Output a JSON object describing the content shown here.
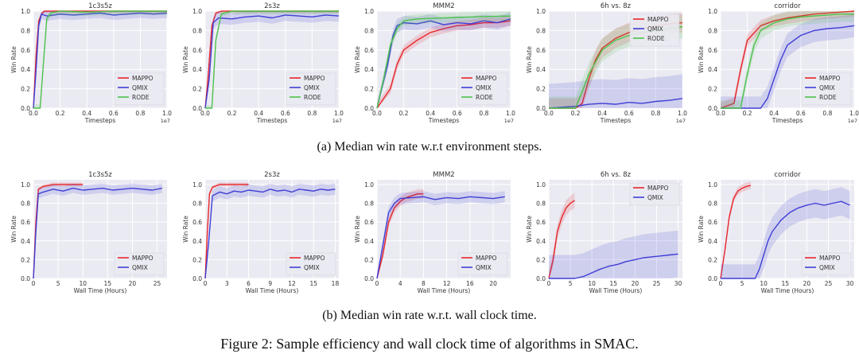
{
  "figure": {
    "row_a_caption": "(a)  Median win rate w.r.t environment steps.",
    "row_b_caption": "(b)  Median win rate w.r.t. wall clock time.",
    "main_caption": "Figure 2: Sample efficiency and wall clock time of algorithms in SMAC."
  },
  "colors": {
    "MAPPO": "#e8262b",
    "QMIX": "#3f3fd6",
    "RODE": "#4cc24c",
    "panel_bg": "#eaeaf2"
  },
  "chart_data": [
    {
      "type": "line",
      "title": "1c3s5z",
      "xlabel": "Timesteps",
      "ylabel": "Win Rate",
      "x_multiplier": "1e7",
      "xlim": [
        0,
        1.0
      ],
      "ylim": [
        0,
        1.0
      ],
      "xticks": [
        "0.0",
        "0.2",
        "0.4",
        "0.6",
        "0.8",
        "1.0"
      ],
      "yticks": [
        "0.0",
        "0.2",
        "0.4",
        "0.6",
        "0.8",
        "1.0"
      ],
      "legend": "bottom-right",
      "series": [
        {
          "name": "MAPPO",
          "x": [
            0,
            0.02,
            0.04,
            0.06,
            0.08,
            0.1,
            0.2,
            0.4,
            0.6,
            0.8,
            1.0
          ],
          "y": [
            0,
            0.55,
            0.9,
            0.97,
            1.0,
            1.0,
            1.0,
            1.0,
            1.0,
            1.0,
            1.0
          ],
          "band": 0.02
        },
        {
          "name": "QMIX",
          "x": [
            0,
            0.02,
            0.04,
            0.06,
            0.1,
            0.2,
            0.3,
            0.4,
            0.5,
            0.6,
            0.7,
            0.8,
            0.9,
            1.0
          ],
          "y": [
            0,
            0.4,
            0.85,
            0.97,
            0.95,
            0.97,
            0.96,
            0.97,
            0.98,
            0.96,
            0.97,
            0.98,
            0.97,
            0.98
          ],
          "band": 0.05
        },
        {
          "name": "RODE",
          "x": [
            0,
            0.05,
            0.08,
            0.1,
            0.13,
            0.2,
            0.4,
            0.6,
            0.8,
            1.0
          ],
          "y": [
            0,
            0.0,
            0.55,
            0.92,
            0.98,
            1.0,
            0.99,
            1.0,
            1.0,
            1.0
          ],
          "band": 0.04
        }
      ]
    },
    {
      "type": "line",
      "title": "2s3z",
      "xlabel": "Timesteps",
      "ylabel": "Win Rate",
      "x_multiplier": "1e7",
      "xlim": [
        0,
        1.0
      ],
      "ylim": [
        0,
        1.0
      ],
      "xticks": [
        "0.0",
        "0.2",
        "0.4",
        "0.6",
        "0.8",
        "1.0"
      ],
      "yticks": [
        "0.0",
        "0.2",
        "0.4",
        "0.6",
        "0.8",
        "1.0"
      ],
      "legend": "bottom-right",
      "series": [
        {
          "name": "MAPPO",
          "x": [
            0,
            0.02,
            0.05,
            0.08,
            0.12,
            0.2,
            0.4,
            0.6,
            0.8,
            1.0
          ],
          "y": [
            0,
            0.3,
            0.85,
            0.98,
            1.0,
            1.0,
            1.0,
            1.0,
            1.0,
            1.0
          ],
          "band": 0.02
        },
        {
          "name": "QMIX",
          "x": [
            0,
            0.03,
            0.06,
            0.1,
            0.2,
            0.3,
            0.4,
            0.5,
            0.6,
            0.7,
            0.8,
            0.9,
            1.0
          ],
          "y": [
            0,
            0.3,
            0.88,
            0.93,
            0.92,
            0.94,
            0.95,
            0.93,
            0.96,
            0.95,
            0.94,
            0.96,
            0.95
          ],
          "band": 0.06
        },
        {
          "name": "RODE",
          "x": [
            0,
            0.05,
            0.08,
            0.12,
            0.2,
            0.4,
            0.6,
            0.8,
            1.0
          ],
          "y": [
            0,
            0.0,
            0.7,
            0.97,
            1.0,
            1.0,
            1.0,
            1.0,
            1.0
          ],
          "band": 0.03
        }
      ]
    },
    {
      "type": "line",
      "title": "MMM2",
      "xlabel": "Timesteps",
      "ylabel": "Win Rate",
      "x_multiplier": "1e7",
      "xlim": [
        0,
        1.0
      ],
      "ylim": [
        0,
        1.0
      ],
      "xticks": [
        "0.0",
        "0.2",
        "0.4",
        "0.6",
        "0.8",
        "1.0"
      ],
      "yticks": [
        "0.0",
        "0.2",
        "0.4",
        "0.6",
        "0.8",
        "1.0"
      ],
      "legend": "bottom-right",
      "series": [
        {
          "name": "MAPPO",
          "x": [
            0,
            0.1,
            0.15,
            0.2,
            0.3,
            0.4,
            0.5,
            0.6,
            0.7,
            0.8,
            0.9,
            1.0
          ],
          "y": [
            0,
            0.2,
            0.45,
            0.6,
            0.7,
            0.78,
            0.82,
            0.85,
            0.86,
            0.88,
            0.88,
            0.9
          ],
          "band": 0.05
        },
        {
          "name": "QMIX",
          "x": [
            0,
            0.08,
            0.12,
            0.15,
            0.2,
            0.3,
            0.4,
            0.5,
            0.6,
            0.7,
            0.8,
            0.9,
            1.0
          ],
          "y": [
            0,
            0.45,
            0.75,
            0.85,
            0.88,
            0.87,
            0.9,
            0.86,
            0.88,
            0.87,
            0.9,
            0.88,
            0.92
          ],
          "band": 0.07
        },
        {
          "name": "RODE",
          "x": [
            0,
            0.05,
            0.1,
            0.15,
            0.2,
            0.3,
            0.5,
            0.7,
            1.0
          ],
          "y": [
            0,
            0.3,
            0.65,
            0.82,
            0.9,
            0.92,
            0.93,
            0.94,
            0.95
          ],
          "band": 0.05
        }
      ]
    },
    {
      "type": "line",
      "title": "6h vs. 8z",
      "xlabel": "Timesteps",
      "ylabel": "Win Rate",
      "x_multiplier": "1e7",
      "xlim": [
        0,
        1.0
      ],
      "ylim": [
        0,
        1.0
      ],
      "xticks": [
        "0.0",
        "0.2",
        "0.4",
        "0.6",
        "0.8",
        "1.0"
      ],
      "yticks": [
        "0.0",
        "0.2",
        "0.4",
        "0.6",
        "0.8",
        "1.0"
      ],
      "legend": "top-right",
      "series": [
        {
          "name": "MAPPO",
          "x": [
            0,
            0.2,
            0.25,
            0.3,
            0.35,
            0.4,
            0.5,
            0.6,
            0.7,
            0.8,
            0.9,
            1.0
          ],
          "y": [
            0,
            0.0,
            0.05,
            0.3,
            0.5,
            0.62,
            0.72,
            0.78,
            0.82,
            0.85,
            0.87,
            0.88
          ],
          "band": 0.1
        },
        {
          "name": "QMIX",
          "x": [
            0,
            0.2,
            0.3,
            0.4,
            0.5,
            0.6,
            0.7,
            0.8,
            0.9,
            1.0
          ],
          "y": [
            0,
            0.02,
            0.04,
            0.05,
            0.04,
            0.06,
            0.05,
            0.07,
            0.08,
            0.1
          ],
          "band": 0.25
        },
        {
          "name": "RODE",
          "x": [
            0,
            0.2,
            0.3,
            0.4,
            0.5,
            0.6,
            0.7,
            0.8,
            0.9,
            1.0
          ],
          "y": [
            0,
            0.0,
            0.35,
            0.6,
            0.7,
            0.75,
            0.78,
            0.8,
            0.82,
            0.84
          ],
          "band": 0.12
        }
      ]
    },
    {
      "type": "line",
      "title": "corridor",
      "xlabel": "Timesteps",
      "ylabel": "Win Rate",
      "x_multiplier": "1e7",
      "xlim": [
        0,
        1.0
      ],
      "ylim": [
        0,
        1.0
      ],
      "xticks": [
        "0.0",
        "0.2",
        "0.4",
        "0.6",
        "0.8",
        "1.0"
      ],
      "yticks": [
        "0.0",
        "0.2",
        "0.4",
        "0.6",
        "0.8",
        "1.0"
      ],
      "legend": "bottom-right",
      "series": [
        {
          "name": "MAPPO",
          "x": [
            0,
            0.1,
            0.15,
            0.2,
            0.3,
            0.4,
            0.5,
            0.6,
            0.7,
            0.8,
            0.9,
            1.0
          ],
          "y": [
            0,
            0.05,
            0.4,
            0.7,
            0.85,
            0.9,
            0.93,
            0.95,
            0.97,
            0.98,
            0.99,
            1.0
          ],
          "band": 0.06
        },
        {
          "name": "QMIX",
          "x": [
            0,
            0.3,
            0.35,
            0.4,
            0.45,
            0.5,
            0.55,
            0.6,
            0.7,
            0.8,
            0.9,
            1.0
          ],
          "y": [
            0,
            0.0,
            0.1,
            0.3,
            0.5,
            0.65,
            0.7,
            0.75,
            0.8,
            0.82,
            0.83,
            0.85
          ],
          "band": 0.12
        },
        {
          "name": "RODE",
          "x": [
            0,
            0.15,
            0.2,
            0.25,
            0.3,
            0.4,
            0.5,
            0.6,
            0.7,
            0.8,
            0.9,
            1.0
          ],
          "y": [
            0,
            0.0,
            0.35,
            0.65,
            0.8,
            0.88,
            0.92,
            0.94,
            0.95,
            0.96,
            0.97,
            0.97
          ],
          "band": 0.08
        }
      ]
    },
    {
      "type": "line",
      "title": "1c3s5z",
      "xlabel": "Wall Time (Hours)",
      "ylabel": "Win Rate",
      "xlim": [
        0,
        27
      ],
      "ylim": [
        0,
        1.05
      ],
      "xticks": [
        "0",
        "5",
        "10",
        "15",
        "20",
        "25"
      ],
      "yticks": [
        "0.0",
        "0.2",
        "0.4",
        "0.6",
        "0.8",
        "1.0"
      ],
      "legend": "bottom-right",
      "series": [
        {
          "name": "MAPPO",
          "x": [
            0,
            0.5,
            1,
            2,
            4,
            6,
            8,
            10
          ],
          "y": [
            0,
            0.6,
            0.95,
            0.98,
            1.0,
            1.0,
            1.0,
            1.0
          ],
          "band": 0.02
        },
        {
          "name": "QMIX",
          "x": [
            0,
            0.5,
            1,
            2,
            4,
            6,
            8,
            10,
            12,
            14,
            16,
            18,
            20,
            22,
            24,
            26
          ],
          "y": [
            0,
            0.5,
            0.9,
            0.92,
            0.95,
            0.93,
            0.96,
            0.94,
            0.95,
            0.96,
            0.94,
            0.95,
            0.96,
            0.95,
            0.94,
            0.96
          ],
          "band": 0.05
        }
      ]
    },
    {
      "type": "line",
      "title": "2s3z",
      "xlabel": "Wall Time (Hours)",
      "ylabel": "Win Rate",
      "xlim": [
        0,
        18.5
      ],
      "ylim": [
        0,
        1.05
      ],
      "xticks": [
        "0",
        "3",
        "6",
        "9",
        "12",
        "15",
        "18"
      ],
      "yticks": [
        "0.0",
        "0.2",
        "0.4",
        "0.6",
        "0.8",
        "1.0"
      ],
      "legend": "bottom-right",
      "series": [
        {
          "name": "MAPPO",
          "x": [
            0,
            0.3,
            0.6,
            1,
            2,
            3,
            4,
            5,
            6
          ],
          "y": [
            0,
            0.5,
            0.9,
            0.97,
            1.0,
            1.0,
            1.0,
            1.0,
            1.0
          ],
          "band": 0.02
        },
        {
          "name": "QMIX",
          "x": [
            0,
            0.5,
            1,
            2,
            3,
            4,
            5,
            6,
            7,
            8,
            9,
            10,
            11,
            12,
            13,
            14,
            15,
            16,
            17,
            18
          ],
          "y": [
            0,
            0.4,
            0.88,
            0.92,
            0.9,
            0.93,
            0.92,
            0.94,
            0.93,
            0.92,
            0.95,
            0.93,
            0.94,
            0.92,
            0.95,
            0.94,
            0.93,
            0.95,
            0.94,
            0.95
          ],
          "band": 0.06
        }
      ]
    },
    {
      "type": "line",
      "title": "MMM2",
      "xlabel": "Wall Time (Hours)",
      "ylabel": "Win Rate",
      "xlim": [
        0,
        23
      ],
      "ylim": [
        0,
        1.05
      ],
      "xticks": [
        "0",
        "4",
        "8",
        "12",
        "16",
        "20"
      ],
      "yticks": [
        "0.0",
        "0.2",
        "0.4",
        "0.6",
        "0.8",
        "1.0"
      ],
      "legend": "bottom-right",
      "series": [
        {
          "name": "MAPPO",
          "x": [
            0,
            1,
            2,
            3,
            4,
            5,
            6,
            7,
            8
          ],
          "y": [
            0,
            0.25,
            0.6,
            0.75,
            0.82,
            0.86,
            0.88,
            0.9,
            0.9
          ],
          "band": 0.05
        },
        {
          "name": "QMIX",
          "x": [
            0,
            1,
            2,
            3,
            4,
            6,
            8,
            10,
            12,
            14,
            16,
            18,
            20,
            22
          ],
          "y": [
            0,
            0.35,
            0.7,
            0.8,
            0.85,
            0.86,
            0.87,
            0.84,
            0.86,
            0.85,
            0.87,
            0.86,
            0.85,
            0.87
          ],
          "band": 0.06
        }
      ]
    },
    {
      "type": "line",
      "title": "6h vs. 8z",
      "xlabel": "Wall Time (Hours)",
      "ylabel": "Win Rate",
      "xlim": [
        0,
        31
      ],
      "ylim": [
        0,
        1.05
      ],
      "xticks": [
        "0",
        "5",
        "10",
        "15",
        "20",
        "25",
        "30"
      ],
      "yticks": [
        "0.0",
        "0.2",
        "0.4",
        "0.6",
        "0.8",
        "1.0"
      ],
      "legend": "top-right",
      "series": [
        {
          "name": "MAPPO",
          "x": [
            0,
            1,
            2,
            3,
            4,
            5,
            6
          ],
          "y": [
            0,
            0.2,
            0.5,
            0.65,
            0.75,
            0.8,
            0.83
          ],
          "band": 0.08
        },
        {
          "name": "QMIX",
          "x": [
            0,
            2,
            4,
            6,
            8,
            10,
            12,
            14,
            16,
            18,
            20,
            22,
            24,
            26,
            28,
            30
          ],
          "y": [
            0,
            0.0,
            0.0,
            0.0,
            0.02,
            0.06,
            0.1,
            0.13,
            0.15,
            0.18,
            0.2,
            0.22,
            0.23,
            0.24,
            0.25,
            0.26
          ],
          "band": 0.25
        }
      ]
    },
    {
      "type": "line",
      "title": "corridor",
      "xlabel": "Wall Time (Hours)",
      "ylabel": "Win Rate",
      "xlim": [
        0,
        31
      ],
      "ylim": [
        0,
        1.05
      ],
      "xticks": [
        "0",
        "5",
        "10",
        "15",
        "20",
        "25",
        "30"
      ],
      "yticks": [
        "0.0",
        "0.2",
        "0.4",
        "0.6",
        "0.8",
        "1.0"
      ],
      "legend": "bottom-right",
      "series": [
        {
          "name": "MAPPO",
          "x": [
            0,
            1,
            2,
            3,
            4,
            5,
            6,
            7
          ],
          "y": [
            0,
            0.3,
            0.65,
            0.85,
            0.93,
            0.96,
            0.98,
            0.99
          ],
          "band": 0.04
        },
        {
          "name": "QMIX",
          "x": [
            0,
            8,
            9,
            10,
            11,
            12,
            14,
            16,
            18,
            20,
            22,
            24,
            26,
            28,
            30
          ],
          "y": [
            0,
            0.0,
            0.1,
            0.25,
            0.4,
            0.5,
            0.62,
            0.7,
            0.75,
            0.78,
            0.8,
            0.78,
            0.8,
            0.82,
            0.78
          ],
          "band": 0.15
        }
      ]
    }
  ]
}
